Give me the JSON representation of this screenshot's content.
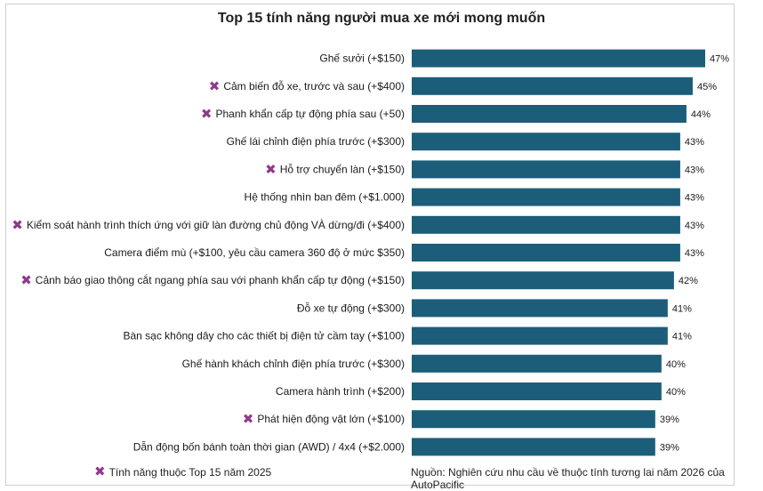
{
  "colors": {
    "bar": "#1c5e7a",
    "marker": "#8e3a8e"
  },
  "marker_icon": "x-mark-icon",
  "chart_data": {
    "type": "bar",
    "orientation": "horizontal",
    "title": "Top 15 tính năng người mua xe mới mong muốn",
    "categories": [
      "Ghế sưởi (+$150)",
      "Cảm biến đỗ xe, trước và sau (+$400)",
      "Phanh khẩn cấp tự động phía sau (+50)",
      "Ghế lái chỉnh điện phía trước (+$300)",
      "Hỗ trợ chuyển làn (+$150)",
      "Hệ thống nhìn ban đêm (+$1.000)",
      "Kiểm soát hành trình thích ứng với giữ làn đường chủ động VÀ dừng/đi (+$400)",
      "Camera điểm mù (+$100, yêu cầu camera 360 độ ở mức $350)",
      "Cảnh báo giao thông cắt ngang phía sau với phanh khẩn cấp tự động (+$150)",
      "Đỗ xe tự động (+$300)",
      "Bàn sạc không dây cho các thiết bị điện tử cầm tay (+$100)",
      "Ghế hành khách chỉnh điện phía trước (+$300)",
      "Camera hành trình (+$200)",
      "Phát hiện động vật lớn (+$100)",
      "Dẫn động bốn bánh toàn thời gian (AWD) / 4x4 (+$2.000)"
    ],
    "values": [
      47,
      45,
      44,
      43,
      43,
      43,
      43,
      43,
      42,
      41,
      41,
      40,
      40,
      39,
      39
    ],
    "value_labels": [
      "47%",
      "45%",
      "44%",
      "43%",
      "43%",
      "43%",
      "43%",
      "43%",
      "42%",
      "41%",
      "41%",
      "40%",
      "40%",
      "39%",
      "39%"
    ],
    "top15_2025": [
      false,
      true,
      true,
      false,
      true,
      false,
      true,
      false,
      true,
      false,
      false,
      false,
      false,
      true,
      false
    ],
    "xlim": [
      0,
      47
    ],
    "grid": false,
    "legend_placement": "bottom-left"
  },
  "legend": {
    "marker_label": "Tính năng thuộc Top 15 năm 2025"
  },
  "source": "Nguồn: Nghiên cứu nhu cầu về thuộc tính tương lai năm 2026 của AutoPacific"
}
